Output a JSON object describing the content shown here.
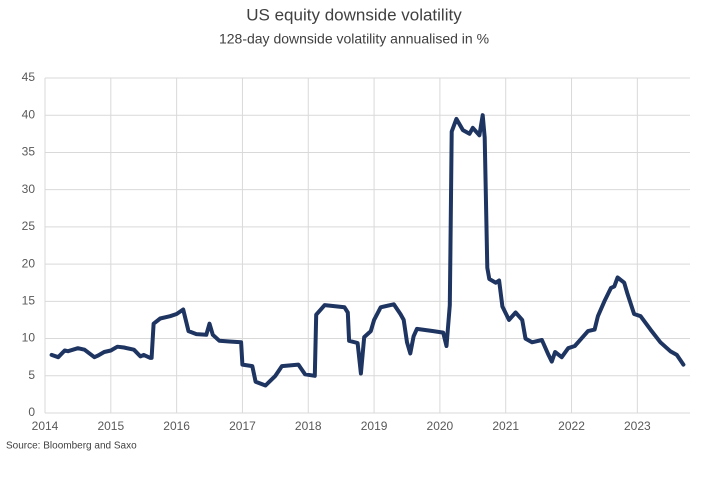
{
  "chart_data": {
    "type": "line",
    "title": "US equity downside volatility",
    "subtitle": "128-day downside volatility annualised in %",
    "source": "Source: Bloomberg and Saxo",
    "color": "#1e3461",
    "grid": true,
    "xlim": [
      2014,
      2023.8
    ],
    "xticks": [
      2014,
      2015,
      2016,
      2017,
      2018,
      2019,
      2020,
      2021,
      2022,
      2023
    ],
    "ylim": [
      0,
      45
    ],
    "yticks": [
      0,
      5,
      10,
      15,
      20,
      25,
      30,
      35,
      40,
      45
    ],
    "x": [
      2014.1,
      2014.2,
      2014.3,
      2014.35,
      2014.5,
      2014.6,
      2014.75,
      2014.8,
      2014.9,
      2015.0,
      2015.1,
      2015.2,
      2015.35,
      2015.45,
      2015.5,
      2015.6,
      2015.62,
      2015.65,
      2015.75,
      2015.9,
      2016.0,
      2016.1,
      2016.18,
      2016.3,
      2016.45,
      2016.5,
      2016.55,
      2016.65,
      2016.8,
      2016.98,
      2017.0,
      2017.15,
      2017.2,
      2017.35,
      2017.5,
      2017.6,
      2017.85,
      2017.95,
      2018.1,
      2018.12,
      2018.25,
      2018.55,
      2018.6,
      2018.62,
      2018.75,
      2018.8,
      2018.85,
      2018.95,
      2019.0,
      2019.1,
      2019.3,
      2019.4,
      2019.45,
      2019.5,
      2019.55,
      2019.6,
      2019.65,
      2019.9,
      2020.05,
      2020.1,
      2020.15,
      2020.16,
      2020.18,
      2020.25,
      2020.35,
      2020.45,
      2020.5,
      2020.6,
      2020.65,
      2020.68,
      2020.72,
      2020.75,
      2020.85,
      2020.9,
      2020.95,
      2021.05,
      2021.15,
      2021.25,
      2021.3,
      2021.4,
      2021.55,
      2021.65,
      2021.7,
      2021.75,
      2021.85,
      2021.95,
      2022.05,
      2022.15,
      2022.25,
      2022.35,
      2022.4,
      2022.5,
      2022.6,
      2022.65,
      2022.7,
      2022.8,
      2022.85,
      2022.95,
      2023.05,
      2023.2,
      2023.35,
      2023.5,
      2023.6,
      2023.7
    ],
    "values": [
      7.8,
      7.5,
      8.4,
      8.3,
      8.7,
      8.5,
      7.5,
      7.7,
      8.2,
      8.4,
      8.9,
      8.8,
      8.5,
      7.6,
      7.8,
      7.4,
      7.4,
      12.0,
      12.7,
      13.0,
      13.3,
      13.9,
      11.0,
      10.6,
      10.5,
      12.0,
      10.5,
      9.7,
      9.6,
      9.5,
      6.5,
      6.3,
      4.2,
      3.7,
      5.0,
      6.3,
      6.5,
      5.2,
      5.0,
      13.2,
      14.5,
      14.2,
      13.5,
      9.7,
      9.4,
      5.3,
      10.2,
      11.0,
      12.5,
      14.2,
      14.6,
      13.3,
      12.5,
      9.5,
      8.0,
      10.3,
      11.3,
      11.0,
      10.8,
      9.0,
      14.5,
      21.5,
      37.8,
      39.5,
      38.0,
      37.5,
      38.3,
      37.3,
      40.0,
      37.0,
      19.5,
      18.0,
      17.5,
      17.8,
      14.3,
      12.5,
      13.5,
      12.5,
      10.0,
      9.5,
      9.8,
      7.8,
      6.9,
      8.2,
      7.5,
      8.7,
      9.0,
      10.0,
      11.0,
      11.2,
      13.0,
      15.0,
      16.8,
      17.0,
      18.2,
      17.5,
      16.0,
      13.3,
      13.0,
      11.2,
      9.5,
      8.3,
      7.8,
      6.5
    ]
  }
}
